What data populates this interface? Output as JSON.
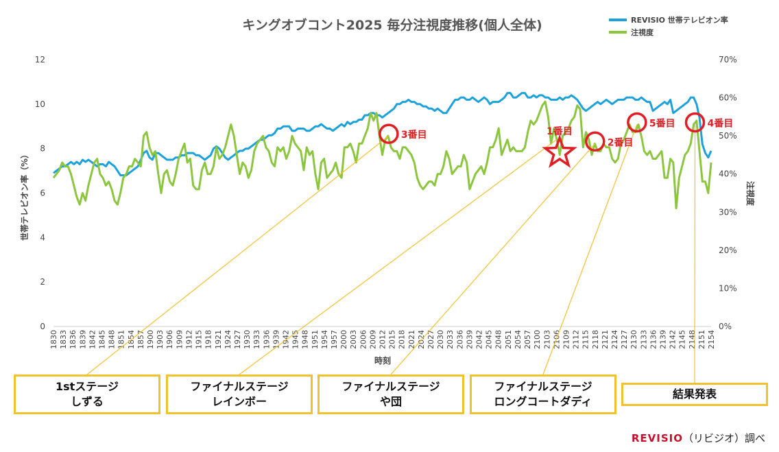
{
  "chart_data": {
    "type": "line",
    "title": "キングオブコント2025 毎分注視度推移(個人全体)",
    "xlabel": "時刻",
    "ylabel_left": "世帯テレビオン率（%）",
    "ylabel_right": "注視度",
    "y_left": {
      "min": 0,
      "max": 12,
      "ticks": [
        "0",
        "2",
        "4",
        "6",
        "8",
        "10",
        "12"
      ]
    },
    "y_right": {
      "min": 0,
      "max": 70,
      "ticks": [
        "0%",
        "10%",
        "20%",
        "30%",
        "40%",
        "50%",
        "60%",
        "70%"
      ]
    },
    "x_tick_labels": [
      "1830",
      "1833",
      "1836",
      "1839",
      "1842",
      "1845",
      "1848",
      "1851",
      "1854",
      "1857",
      "1900",
      "1903",
      "1906",
      "1909",
      "1912",
      "1915",
      "1918",
      "1921",
      "1924",
      "1927",
      "1930",
      "1933",
      "1936",
      "1939",
      "1942",
      "1945",
      "1948",
      "1951",
      "1954",
      "1957",
      "2000",
      "2003",
      "2006",
      "2009",
      "2012",
      "2015",
      "2018",
      "2021",
      "2024",
      "2027",
      "2030",
      "2033",
      "2036",
      "2039",
      "2042",
      "2045",
      "2048",
      "2051",
      "2054",
      "2057",
      "2100",
      "2103",
      "2106",
      "2109",
      "2112",
      "2115",
      "2118",
      "2121",
      "2124",
      "2127",
      "2130",
      "2133",
      "2136",
      "2139",
      "2142",
      "2145",
      "2148",
      "2151",
      "2154"
    ],
    "grid": false,
    "legend": "top-right",
    "series": [
      {
        "name": "REVISIO 世帯テレビオン率",
        "axis": "left",
        "color": "#1da1db",
        "values": [
          6.9,
          7,
          7.1,
          7.2,
          7.2,
          7.3,
          7.4,
          7.3,
          7.4,
          7.3,
          7.5,
          7.4,
          7.5,
          7.4,
          7.3,
          7.2,
          7.3,
          7.3,
          7.2,
          7.4,
          7.3,
          7.2,
          7,
          6.8,
          6.8,
          6.8,
          6.9,
          7,
          7.1,
          7.2,
          7.5,
          7.8,
          7.9,
          7.6,
          7.5,
          7.8,
          7.8,
          7.7,
          7.6,
          7.5,
          7.5,
          7.5,
          7.6,
          7.6,
          7.7,
          7.7,
          7.8,
          7.8,
          7.8,
          7.7,
          7.7,
          7.6,
          7.5,
          7.6,
          7.7,
          8,
          8.1,
          8,
          7.8,
          7.6,
          7.5,
          7.6,
          7.7,
          7.8,
          7.9,
          7.9,
          8,
          8,
          8.1,
          8.2,
          8.3,
          8.4,
          8.4,
          8.5,
          8.6,
          8.6,
          8.7,
          8.9,
          8.9,
          9,
          9,
          9,
          8.8,
          8.8,
          8.9,
          8.9,
          8.9,
          8.8,
          8.8,
          8.9,
          9,
          9,
          9.1,
          9,
          8.9,
          8.9,
          8.8,
          8.9,
          9,
          9.1,
          9,
          9.2,
          9.1,
          9.2,
          9.2,
          9.3,
          9.3,
          9.5,
          9.5,
          9.6,
          9.6,
          9.5,
          9.5,
          9.4,
          9.5,
          9.6,
          9.7,
          9.8,
          10,
          10,
          10.1,
          10.1,
          10.2,
          10.1,
          10.1,
          10,
          10,
          9.9,
          9.9,
          9.8,
          9.8,
          9.7,
          9.8,
          9.7,
          9.6,
          9.6,
          9.8,
          10,
          10.2,
          10.2,
          10.3,
          10.3,
          10.2,
          10.2,
          10.3,
          10.2,
          10.1,
          10.2,
          10.3,
          10.2,
          10,
          10.1,
          10.1,
          10.1,
          10.2,
          10.3,
          10.5,
          10.5,
          10.3,
          10.3,
          10.4,
          10.5,
          10.5,
          10.3,
          10.3,
          10.4,
          10.3,
          10.4,
          10.4,
          10.3,
          10.3,
          10.2,
          10.2,
          10.2,
          10.3,
          10.2,
          10.3,
          10.3,
          10.4,
          10.3,
          10.2,
          10,
          9.8,
          9.7,
          9.8,
          9.9,
          10,
          10.1,
          10,
          10.1,
          10.2,
          10.1,
          10,
          10.1,
          10.2,
          10.2,
          10.2,
          10.3,
          10.3,
          10.3,
          10.2,
          10.2,
          10.3,
          10.2,
          10.1,
          10.1,
          9.7,
          9.8,
          9.9,
          10,
          10.1,
          10,
          10.2,
          9.6,
          9.7,
          9.8,
          9.9,
          10,
          10.1,
          10.3,
          10.3,
          10,
          9.4,
          8.2,
          7.8,
          7.6,
          7.9
        ]
      },
      {
        "name": "注視度",
        "axis": "right",
        "color": "#8cc63f",
        "values": [
          39,
          40,
          41,
          43,
          42,
          42,
          40,
          37,
          34,
          32,
          35,
          33,
          37,
          40,
          43,
          44,
          40,
          39,
          37,
          38,
          36,
          33,
          32,
          35,
          39,
          40,
          42,
          42,
          44,
          43,
          42,
          50,
          51,
          47,
          45,
          46,
          40,
          35,
          40,
          41,
          38,
          37,
          40,
          44,
          46,
          48,
          43,
          44,
          37,
          36,
          36,
          41,
          43,
          40,
          40,
          42,
          47,
          44,
          45,
          47,
          50,
          53,
          50,
          45,
          40,
          43,
          42,
          39,
          41,
          46,
          48,
          49,
          50,
          47,
          46,
          43,
          42,
          47,
          46,
          47,
          44,
          46,
          50,
          48,
          47,
          46,
          41,
          47,
          45,
          46,
          40,
          36,
          43,
          44,
          39,
          40,
          41,
          43,
          40,
          39,
          47,
          47,
          48,
          46,
          43,
          48,
          48,
          50,
          52,
          56,
          54,
          56,
          50,
          45,
          49,
          50,
          47,
          46,
          46,
          44,
          47,
          47,
          46,
          45,
          43,
          39,
          37,
          36,
          37,
          38,
          38,
          37,
          40,
          40,
          42,
          46,
          44,
          40,
          41,
          42,
          42,
          45,
          43,
          36,
          38,
          40,
          41,
          42,
          40,
          43,
          47,
          47,
          49,
          52,
          45,
          47,
          49,
          46,
          47,
          46,
          46,
          46,
          47,
          51,
          54,
          53,
          54,
          56,
          58,
          59,
          55,
          48,
          52,
          49,
          45,
          50,
          51,
          52,
          54,
          55,
          58,
          57,
          47,
          51,
          49,
          45,
          48,
          46,
          46,
          48,
          47,
          47,
          44,
          43,
          44,
          48,
          49,
          51,
          53,
          51,
          51,
          53,
          50,
          46,
          45,
          46,
          44,
          44,
          45,
          46,
          39,
          39,
          44,
          43,
          31,
          39,
          42,
          45,
          46,
          48,
          53,
          54,
          46,
          38,
          38,
          35,
          43
        ]
      }
    ],
    "annotations": {
      "ranks": [
        {
          "label": "1番目",
          "marker": "star",
          "x_time": "2107"
        },
        {
          "label": "2番目",
          "marker": "circle",
          "x_time": "2118"
        },
        {
          "label": "3番目",
          "marker": "circle",
          "x_time": "2014"
        },
        {
          "label": "4番目",
          "marker": "circle",
          "x_time": "2149"
        },
        {
          "label": "5番目",
          "marker": "circle",
          "x_time": "2131"
        }
      ],
      "segments": [
        {
          "label": "1stステージ\nしずる"
        },
        {
          "label": "ファイナルステージ\nレインボー"
        },
        {
          "label": "ファイナルステージ\nや団"
        },
        {
          "label": "ファイナルステージ\nロングコートダディ"
        },
        {
          "label": "結果発表"
        }
      ]
    }
  },
  "credit": {
    "brand": "REVISIO",
    "text": "（リビジオ）調べ"
  }
}
